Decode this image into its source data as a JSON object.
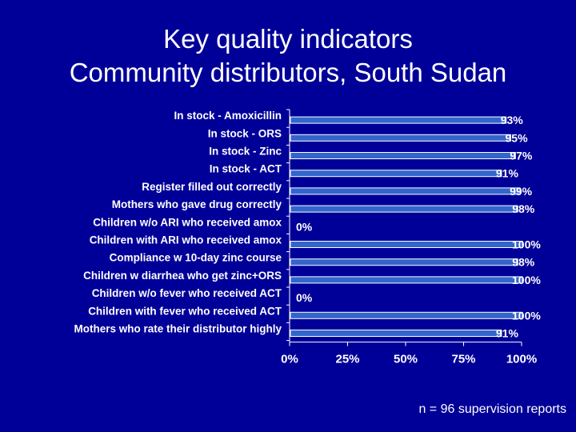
{
  "slide": {
    "title_line1": "Key quality indicators",
    "title_line2": "Community distributors, South Sudan",
    "footnote": "n = 96 supervision reports"
  },
  "colors": {
    "background": "#000099",
    "bar_fill": "#3366cc",
    "bar_stroke": "#ffffff",
    "text": "#ffffff"
  },
  "chart_data": {
    "type": "bar",
    "orientation": "horizontal",
    "categories": [
      "In stock - Amoxicillin",
      "In stock - ORS",
      "In stock - Zinc",
      "In stock - ACT",
      "Register filled out correctly",
      "Mothers who gave drug correctly",
      "Children w/o ARI who received amox",
      "Children with ARI who received amox",
      "Compliance w 10-day zinc course",
      "Children w diarrhea who get zinc+ORS",
      "Children w/o fever who received ACT",
      "Children with fever who received ACT",
      "Mothers who rate their distributor highly"
    ],
    "values": [
      93,
      95,
      97,
      91,
      99,
      98,
      0,
      100,
      98,
      100,
      0,
      100,
      91
    ],
    "data_labels": [
      "93%",
      "95%",
      "97%",
      "91%",
      "99%",
      "98%",
      "0%",
      "100%",
      "98%",
      "100%",
      "0%",
      "100%",
      "91%"
    ],
    "xlim": [
      0,
      100
    ],
    "xticks": [
      0,
      25,
      50,
      75,
      100
    ],
    "xtick_labels": [
      "0%",
      "25%",
      "50%",
      "75%",
      "100%"
    ],
    "grid": false,
    "legend": "none"
  }
}
